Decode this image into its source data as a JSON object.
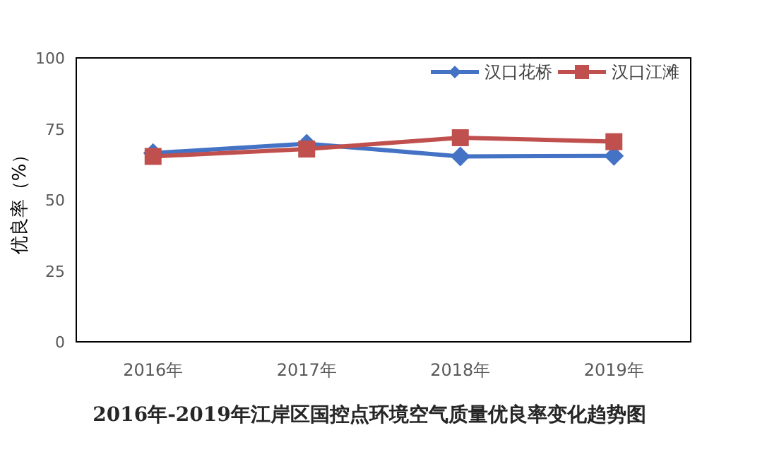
{
  "chart_data": {
    "type": "line",
    "title": "2016年-2019年江岸区国控点环境空气质量优良率变化趋势图",
    "ylabel": "优良率（%）",
    "categories": [
      "2016年",
      "2017年",
      "2018年",
      "2019年"
    ],
    "series": [
      {
        "name": "汉口花桥",
        "color": "#4472c4",
        "marker": "diamond",
        "values": [
          66.5,
          69.8,
          65.3,
          65.5
        ]
      },
      {
        "name": "汉口江滩",
        "color": "#c0504d",
        "marker": "square",
        "values": [
          65.3,
          67.9,
          71.9,
          70.5
        ]
      }
    ],
    "ylim": [
      0,
      100
    ],
    "yticks": [
      0,
      25,
      50,
      75,
      100
    ],
    "grid": false,
    "legend": "top right",
    "line_style": "solid"
  }
}
